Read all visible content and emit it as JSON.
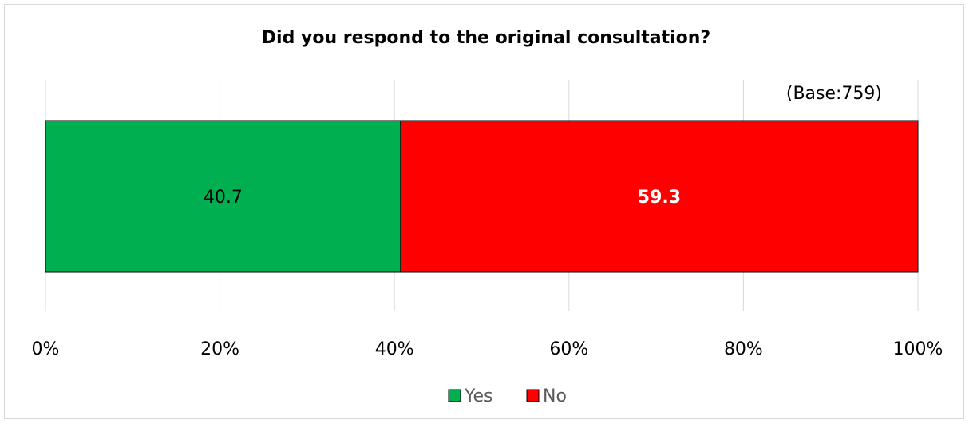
{
  "chart_data": {
    "type": "bar",
    "orientation": "horizontal",
    "stacked": "100%",
    "title": "Did you respond to the original consultation?",
    "annotation": "(Base:759)",
    "categories": [
      ""
    ],
    "series": [
      {
        "name": "Yes",
        "values": [
          40.7
        ],
        "label": "40.7",
        "color": "#00b050",
        "label_color": "#000000",
        "label_bold": false
      },
      {
        "name": "No",
        "values": [
          59.3
        ],
        "label": "59.3",
        "color": "#ff0000",
        "label_color": "#ffffff",
        "label_bold": true
      }
    ],
    "xlim": [
      0,
      100
    ],
    "xticks": [
      "0%",
      "20%",
      "40%",
      "60%",
      "80%",
      "100%"
    ],
    "grid": "vertical",
    "legend": "bottom-center"
  }
}
